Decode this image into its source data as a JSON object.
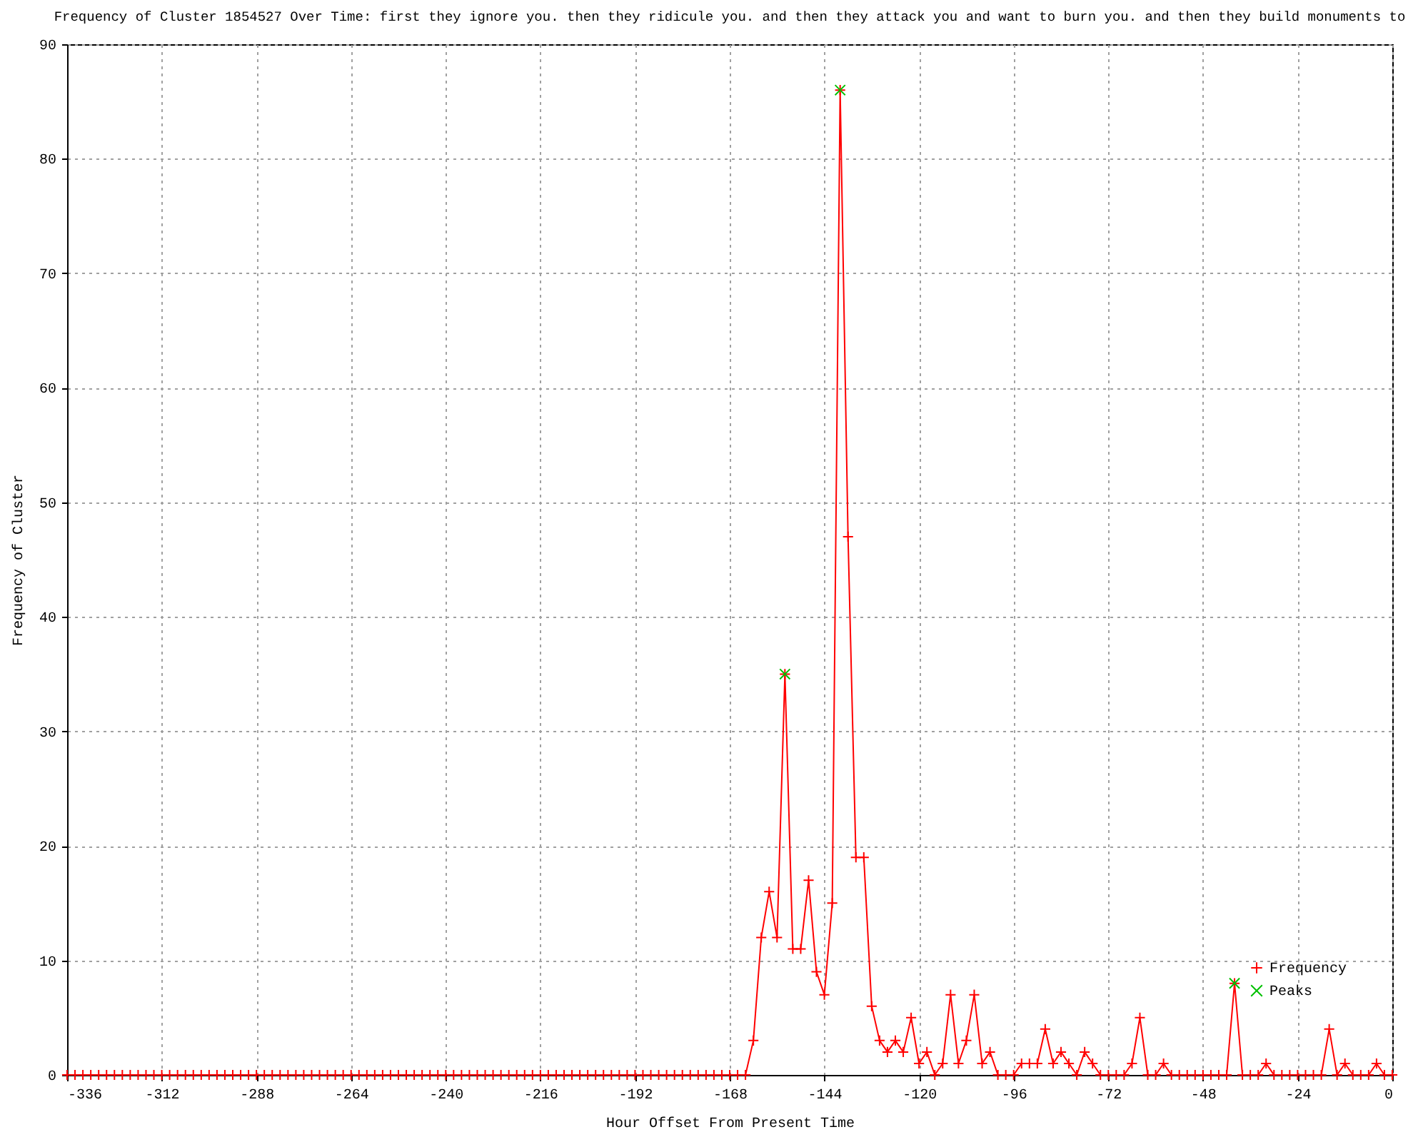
{
  "chart_data": {
    "type": "line",
    "title": "Frequency of Cluster 1854527 Over Time: first they ignore you. then they ridicule you. and then they attack you and want to burn you. and then they build monuments to",
    "xlabel": "Hour Offset From Present Time",
    "ylabel": "Frequency of Cluster",
    "x": [
      -336,
      -334,
      -332,
      -330,
      -328,
      -326,
      -324,
      -322,
      -320,
      -318,
      -316,
      -314,
      -312,
      -310,
      -308,
      -306,
      -304,
      -302,
      -300,
      -298,
      -296,
      -294,
      -292,
      -290,
      -288,
      -286,
      -284,
      -282,
      -280,
      -278,
      -276,
      -274,
      -272,
      -270,
      -268,
      -266,
      -264,
      -262,
      -260,
      -258,
      -256,
      -254,
      -252,
      -250,
      -248,
      -246,
      -244,
      -242,
      -240,
      -238,
      -236,
      -234,
      -232,
      -230,
      -228,
      -226,
      -224,
      -222,
      -220,
      -218,
      -216,
      -214,
      -212,
      -210,
      -208,
      -206,
      -204,
      -202,
      -200,
      -198,
      -196,
      -194,
      -192,
      -190,
      -188,
      -186,
      -184,
      -182,
      -180,
      -178,
      -176,
      -174,
      -172,
      -170,
      -168,
      -166,
      -164,
      -162,
      -160,
      -158,
      -156,
      -154,
      -152,
      -150,
      -148,
      -146,
      -144,
      -142,
      -140,
      -138,
      -136,
      -134,
      -132,
      -130,
      -128,
      -126,
      -124,
      -122,
      -120,
      -118,
      -116,
      -114,
      -112,
      -110,
      -108,
      -106,
      -104,
      -102,
      -100,
      -98,
      -96,
      -94,
      -92,
      -90,
      -88,
      -86,
      -84,
      -82,
      -80,
      -78,
      -76,
      -74,
      -72,
      -70,
      -68,
      -66,
      -64,
      -62,
      -60,
      -58,
      -56,
      -54,
      -52,
      -50,
      -48,
      -46,
      -44,
      -42,
      -40,
      -38,
      -36,
      -34,
      -32,
      -30,
      -28,
      -26,
      -24,
      -22,
      -20,
      -18,
      -16,
      -14,
      -12,
      -10,
      -8,
      -6,
      -4,
      -2,
      0
    ],
    "series": [
      {
        "name": "Frequency",
        "color": "#ff0000",
        "values": [
          0,
          0,
          0,
          0,
          0,
          0,
          0,
          0,
          0,
          0,
          0,
          0,
          0,
          0,
          0,
          0,
          0,
          0,
          0,
          0,
          0,
          0,
          0,
          0,
          0,
          0,
          0,
          0,
          0,
          0,
          0,
          0,
          0,
          0,
          0,
          0,
          0,
          0,
          0,
          0,
          0,
          0,
          0,
          0,
          0,
          0,
          0,
          0,
          0,
          0,
          0,
          0,
          0,
          0,
          0,
          0,
          0,
          0,
          0,
          0,
          0,
          0,
          0,
          0,
          0,
          0,
          0,
          0,
          0,
          0,
          0,
          0,
          0,
          0,
          0,
          0,
          0,
          0,
          0,
          0,
          0,
          0,
          0,
          0,
          0,
          0,
          0,
          3,
          12,
          16,
          12,
          35,
          11,
          11,
          17,
          9,
          7,
          15,
          86,
          47,
          19,
          19,
          6,
          3,
          2,
          3,
          2,
          5,
          1,
          2,
          0,
          1,
          7,
          1,
          3,
          7,
          1,
          2,
          0,
          0,
          0,
          1,
          1,
          1,
          4,
          1,
          2,
          1,
          0,
          2,
          1,
          0,
          0,
          0,
          0,
          1,
          5,
          0,
          0,
          1,
          0,
          0,
          0,
          0,
          0,
          0,
          0,
          0,
          8,
          0,
          0,
          0,
          1,
          0,
          0,
          0,
          0,
          0,
          0,
          0,
          4,
          0,
          1,
          0,
          0,
          0,
          1,
          0,
          0
        ]
      },
      {
        "name": "Peaks",
        "type": "scatter",
        "color": "#00c000",
        "x": [
          -154,
          -140,
          -40
        ],
        "values": [
          35,
          86,
          8
        ]
      }
    ],
    "marker": "cross",
    "xlim": [
      -336,
      0
    ],
    "xticks": [
      -336,
      -312,
      -288,
      -264,
      -240,
      -216,
      -192,
      -168,
      -144,
      -120,
      -96,
      -72,
      -48,
      -24,
      0
    ],
    "ylim": [
      0,
      90
    ],
    "yticks": [
      0,
      10,
      20,
      30,
      40,
      50,
      60,
      70,
      80,
      90
    ],
    "grid": true,
    "legend": "bottom right"
  }
}
